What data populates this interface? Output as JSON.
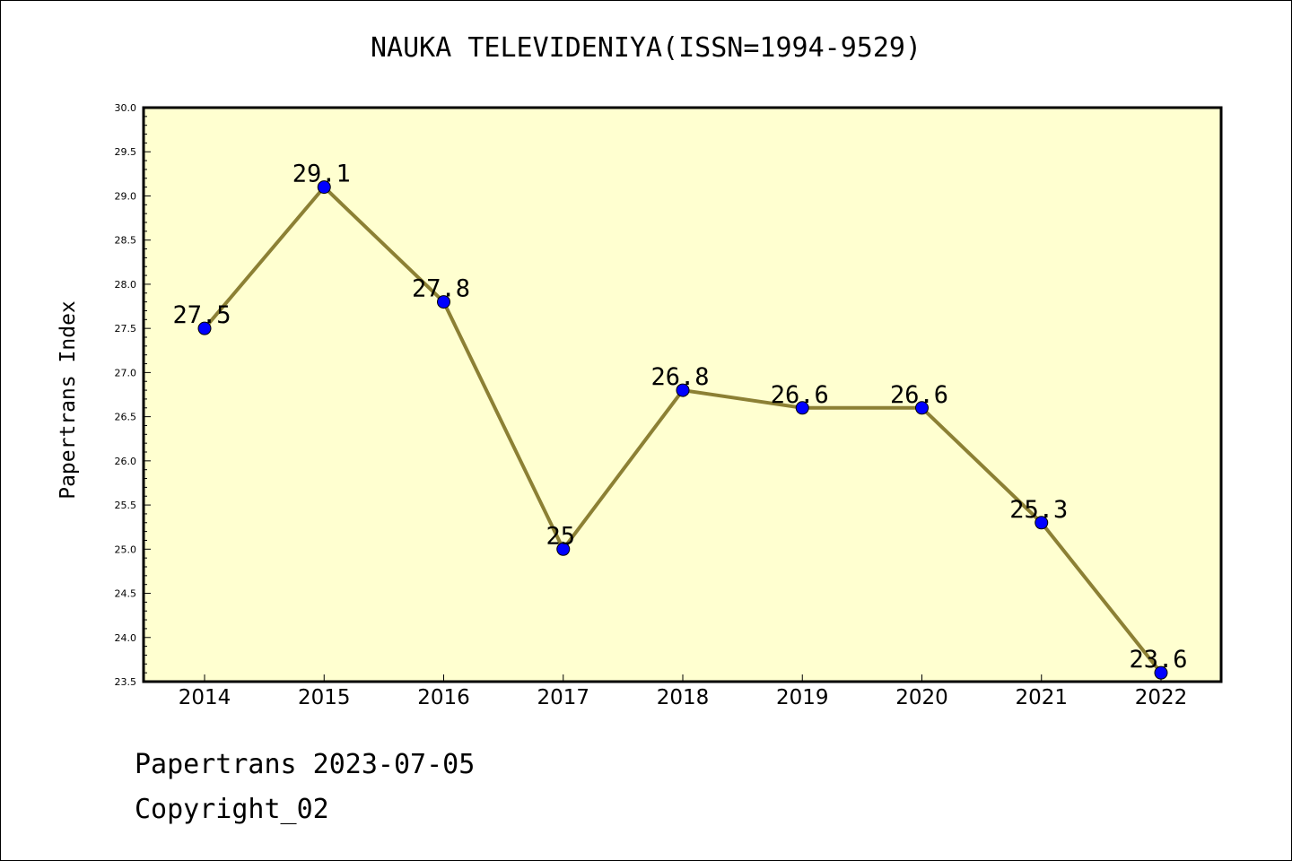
{
  "title": "NAUKA TELEVIDENIYA(ISSN=1994-9529)",
  "footer": {
    "line1": "Papertrans 2023-07-05",
    "line2": "Copyright_02"
  },
  "colors": {
    "plot_background": "#ffffd0",
    "line": "#8c8034",
    "marker": "#0000ff"
  },
  "chart_data": {
    "type": "line",
    "title": "NAUKA TELEVIDENIYA(ISSN=1994-9529)",
    "xlabel": "",
    "ylabel": "Papertrans Index",
    "categories": [
      "2014",
      "2015",
      "2016",
      "2017",
      "2018",
      "2019",
      "2020",
      "2021",
      "2022"
    ],
    "series": [
      {
        "values": [
          27.5,
          29.1,
          27.8,
          25,
          26.8,
          26.6,
          26.6,
          25.3,
          23.6
        ],
        "labels": [
          "27.5",
          "29.1",
          "27.8",
          "25",
          "26.8",
          "26.6",
          "26.6",
          "25.3",
          "23.6"
        ]
      }
    ],
    "ylim": [
      23.5,
      30.0
    ],
    "yticks": [
      "23.5",
      "24.0",
      "24.5",
      "25.0",
      "25.5",
      "26.0",
      "26.5",
      "27.0",
      "27.5",
      "28.0",
      "28.5",
      "29.0",
      "29.5",
      "30.0"
    ],
    "grid": false,
    "legend": "none"
  }
}
